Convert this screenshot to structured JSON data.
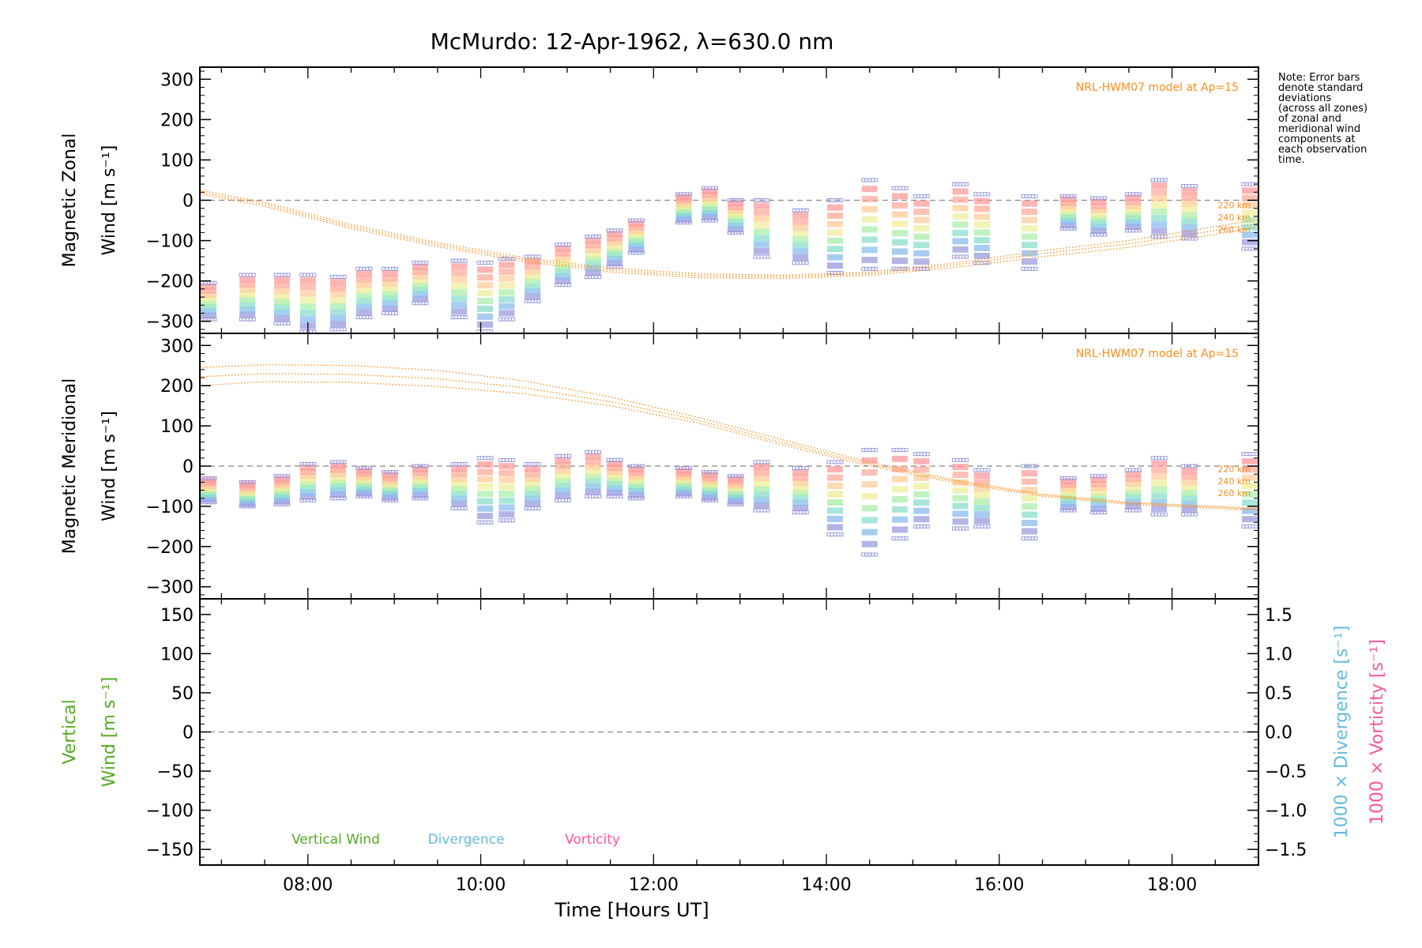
{
  "title": "McMurdo: 12-Apr-1962, λ=630.0 nm",
  "note": [
    "Note: Error bars",
    "denote standard",
    "deviations",
    "(across all zones)",
    "of zonal and",
    "meridional wind",
    "components at",
    "each observation",
    "time."
  ],
  "colors": {
    "axis": "#000000",
    "model": "#ff8c1a",
    "zero_line": "#888888",
    "vertical": "#55aa22",
    "divergence": "#66bbdd",
    "vorticity": "#ff5599",
    "error_bar": "#9999dd"
  },
  "chart_data": [
    {
      "type": "scatter",
      "panel": "zonal",
      "ylabel_line1": "Magnetic Zonal",
      "ylabel_line2": "Wind [m s⁻¹]",
      "xlim": [
        6.75,
        19.0
      ],
      "ylim": [
        -330,
        330
      ],
      "yticks": [
        300,
        200,
        100,
        0,
        -100,
        -200,
        -300
      ],
      "yticklabels": [
        "300",
        "200",
        "100",
        "0",
        "−100",
        "−200",
        "−300"
      ],
      "model_label": "NRL-HWM07 model at Ap=15",
      "model_curve_labels": [
        "220 km",
        "240 km",
        "260 km"
      ],
      "model_x": [
        6.75,
        7.5,
        8.5,
        9.5,
        10.5,
        11.5,
        12.5,
        13.5,
        14.5,
        15.5,
        16.5,
        17.5,
        18.5,
        19.0
      ],
      "model_series": [
        {
          "name": "220 km",
          "values": [
            25,
            -5,
            -60,
            -105,
            -142,
            -168,
            -182,
            -186,
            -178,
            -155,
            -125,
            -100,
            -65,
            -48
          ]
        },
        {
          "name": "240 km",
          "values": [
            20,
            -10,
            -65,
            -110,
            -147,
            -173,
            -187,
            -190,
            -182,
            -160,
            -132,
            -108,
            -75,
            -57
          ]
        },
        {
          "name": "260 km",
          "values": [
            15,
            -15,
            -70,
            -115,
            -152,
            -178,
            -192,
            -194,
            -186,
            -166,
            -140,
            -117,
            -85,
            -66
          ]
        }
      ],
      "observations": [
        {
          "x": 6.85,
          "mid": -250,
          "spread": 45
        },
        {
          "x": 7.3,
          "mid": -240,
          "spread": 55
        },
        {
          "x": 7.7,
          "mid": -245,
          "spread": 60
        },
        {
          "x": 8.0,
          "mid": -255,
          "spread": 70
        },
        {
          "x": 8.35,
          "mid": -255,
          "spread": 65
        },
        {
          "x": 8.65,
          "mid": -230,
          "spread": 60
        },
        {
          "x": 8.95,
          "mid": -225,
          "spread": 55
        },
        {
          "x": 9.3,
          "mid": -205,
          "spread": 50
        },
        {
          "x": 9.75,
          "mid": -220,
          "spread": 70
        },
        {
          "x": 10.05,
          "mid": -240,
          "spread": 85
        },
        {
          "x": 10.3,
          "mid": -220,
          "spread": 75
        },
        {
          "x": 10.6,
          "mid": -195,
          "spread": 55
        },
        {
          "x": 10.95,
          "mid": -160,
          "spread": 50
        },
        {
          "x": 11.3,
          "mid": -140,
          "spread": 50
        },
        {
          "x": 11.55,
          "mid": -120,
          "spread": 45
        },
        {
          "x": 11.8,
          "mid": -90,
          "spread": 40
        },
        {
          "x": 12.35,
          "mid": -20,
          "spread": 35
        },
        {
          "x": 12.65,
          "mid": -10,
          "spread": 40
        },
        {
          "x": 12.95,
          "mid": -40,
          "spread": 40
        },
        {
          "x": 13.25,
          "mid": -70,
          "spread": 70
        },
        {
          "x": 13.7,
          "mid": -90,
          "spread": 65
        },
        {
          "x": 14.1,
          "mid": -90,
          "spread": 90
        },
        {
          "x": 14.5,
          "mid": -60,
          "spread": 110
        },
        {
          "x": 14.85,
          "mid": -70,
          "spread": 100
        },
        {
          "x": 15.1,
          "mid": -80,
          "spread": 90
        },
        {
          "x": 15.55,
          "mid": -50,
          "spread": 90
        },
        {
          "x": 15.8,
          "mid": -70,
          "spread": 85
        },
        {
          "x": 16.35,
          "mid": -80,
          "spread": 90
        },
        {
          "x": 16.8,
          "mid": -30,
          "spread": 40
        },
        {
          "x": 17.15,
          "mid": -40,
          "spread": 45
        },
        {
          "x": 17.55,
          "mid": -30,
          "spread": 45
        },
        {
          "x": 17.85,
          "mid": -20,
          "spread": 70
        },
        {
          "x": 18.2,
          "mid": -30,
          "spread": 65
        },
        {
          "x": 18.9,
          "mid": -40,
          "spread": 80
        }
      ]
    },
    {
      "type": "scatter",
      "panel": "meridional",
      "ylabel_line1": "Magnetic Meridional",
      "ylabel_line2": "Wind [m s⁻¹]",
      "xlim": [
        6.75,
        19.0
      ],
      "ylim": [
        -330,
        330
      ],
      "yticks": [
        300,
        200,
        100,
        0,
        -100,
        -200,
        -300
      ],
      "yticklabels": [
        "300",
        "200",
        "100",
        "0",
        "−100",
        "−200",
        "−300"
      ],
      "model_label": "NRL-HWM07 model at Ap=15",
      "model_curve_labels": [
        "220 km",
        "240 km",
        "260 km"
      ],
      "model_x": [
        6.75,
        7.5,
        8.5,
        9.5,
        10.5,
        11.5,
        12.5,
        13.5,
        14.5,
        15.5,
        16.5,
        17.5,
        18.5,
        19.0
      ],
      "model_series": [
        {
          "name": "220 km",
          "values": [
            245,
            252,
            250,
            238,
            212,
            172,
            122,
            65,
            10,
            -35,
            -70,
            -90,
            -100,
            -105
          ]
        },
        {
          "name": "240 km",
          "values": [
            222,
            230,
            228,
            217,
            195,
            160,
            115,
            58,
            5,
            -38,
            -72,
            -92,
            -102,
            -107
          ]
        },
        {
          "name": "260 km",
          "values": [
            200,
            210,
            208,
            198,
            180,
            150,
            108,
            52,
            0,
            -42,
            -75,
            -95,
            -105,
            -110
          ]
        }
      ],
      "observations": [
        {
          "x": 6.85,
          "mid": -60,
          "spread": 30
        },
        {
          "x": 7.3,
          "mid": -70,
          "spread": 30
        },
        {
          "x": 7.7,
          "mid": -60,
          "spread": 35
        },
        {
          "x": 8.0,
          "mid": -40,
          "spread": 45
        },
        {
          "x": 8.35,
          "mid": -35,
          "spread": 45
        },
        {
          "x": 8.65,
          "mid": -40,
          "spread": 35
        },
        {
          "x": 8.95,
          "mid": -50,
          "spread": 35
        },
        {
          "x": 9.3,
          "mid": -40,
          "spread": 40
        },
        {
          "x": 9.75,
          "mid": -50,
          "spread": 55
        },
        {
          "x": 10.05,
          "mid": -60,
          "spread": 80
        },
        {
          "x": 10.3,
          "mid": -60,
          "spread": 75
        },
        {
          "x": 10.6,
          "mid": -50,
          "spread": 55
        },
        {
          "x": 10.95,
          "mid": -30,
          "spread": 55
        },
        {
          "x": 11.3,
          "mid": -20,
          "spread": 55
        },
        {
          "x": 11.55,
          "mid": -30,
          "spread": 45
        },
        {
          "x": 11.8,
          "mid": -40,
          "spread": 40
        },
        {
          "x": 12.35,
          "mid": -40,
          "spread": 35
        },
        {
          "x": 12.65,
          "mid": -50,
          "spread": 35
        },
        {
          "x": 12.95,
          "mid": -60,
          "spread": 35
        },
        {
          "x": 13.25,
          "mid": -50,
          "spread": 60
        },
        {
          "x": 13.7,
          "mid": -60,
          "spread": 55
        },
        {
          "x": 14.1,
          "mid": -80,
          "spread": 90
        },
        {
          "x": 14.5,
          "mid": -90,
          "spread": 130
        },
        {
          "x": 14.85,
          "mid": -70,
          "spread": 110
        },
        {
          "x": 15.1,
          "mid": -60,
          "spread": 90
        },
        {
          "x": 15.55,
          "mid": -70,
          "spread": 85
        },
        {
          "x": 15.8,
          "mid": -80,
          "spread": 70
        },
        {
          "x": 16.35,
          "mid": -90,
          "spread": 90
        },
        {
          "x": 16.8,
          "mid": -70,
          "spread": 40
        },
        {
          "x": 17.15,
          "mid": -70,
          "spread": 45
        },
        {
          "x": 17.55,
          "mid": -60,
          "spread": 50
        },
        {
          "x": 17.85,
          "mid": -50,
          "spread": 70
        },
        {
          "x": 18.2,
          "mid": -60,
          "spread": 60
        },
        {
          "x": 18.9,
          "mid": -60,
          "spread": 90
        }
      ]
    },
    {
      "type": "line",
      "panel": "vertical",
      "ylabel_line1": "Vertical",
      "ylabel_line2": "Wind [m s⁻¹]",
      "y2label_line1": "1000 × Divergence [s⁻¹]",
      "y2label_line2": "1000 × Vorticity [s⁻¹]",
      "xlim": [
        6.75,
        19.0
      ],
      "ylim": [
        -170,
        170
      ],
      "yticks": [
        150,
        100,
        50,
        0,
        -50,
        -100,
        -150
      ],
      "yticklabels": [
        "150",
        "100",
        "50",
        "0",
        "−50",
        "−100",
        "−150"
      ],
      "y2lim": [
        -1.7,
        1.7
      ],
      "y2ticks": [
        1.5,
        1.0,
        0.5,
        0.0,
        -0.5,
        -1.0,
        -1.5
      ],
      "y2ticklabels": [
        "1.5",
        "1.0",
        "0.5",
        "0.0",
        "−0.5",
        "−1.0",
        "−1.5"
      ],
      "series": [
        {
          "name": "Vertical Wind",
          "values": []
        },
        {
          "name": "Divergence",
          "values": []
        },
        {
          "name": "Vorticity",
          "values": []
        }
      ]
    }
  ],
  "xaxis": {
    "xlabel": "Time [Hours UT]",
    "ticks": [
      8,
      10,
      12,
      14,
      16,
      18
    ],
    "ticklabels": [
      "08:00",
      "10:00",
      "12:00",
      "14:00",
      "16:00",
      "18:00"
    ]
  }
}
